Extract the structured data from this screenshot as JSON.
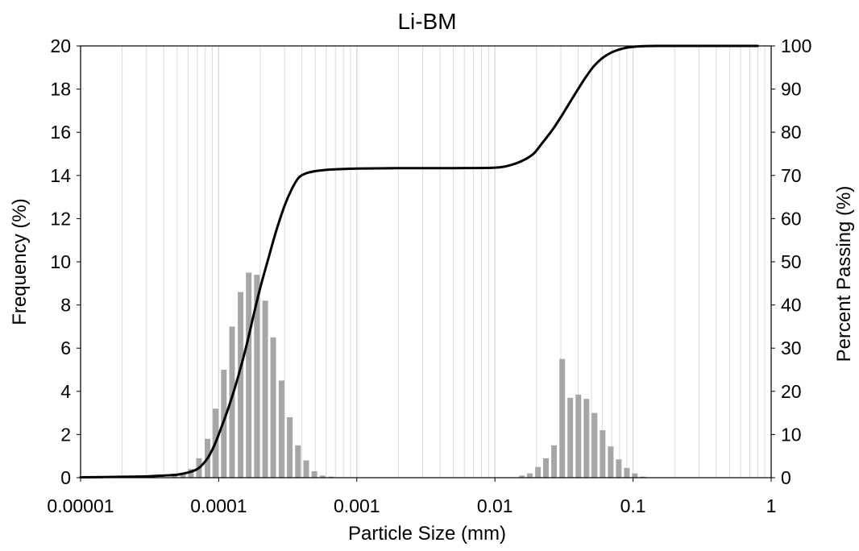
{
  "chart_data": {
    "type": "bar",
    "title": "Li-BM",
    "xlabel": "Particle Size (mm)",
    "ylabel": "Frequency (%)",
    "y2label": "Percent Passing (%)",
    "xscale": "log",
    "xlim": [
      1e-05,
      1
    ],
    "ylim": [
      0,
      20
    ],
    "y2lim": [
      0,
      100
    ],
    "x_ticks": [
      "0.00001",
      "0.0001",
      "0.001",
      "0.01",
      "0.1",
      "1"
    ],
    "y_ticks": [
      "0",
      "2",
      "4",
      "6",
      "8",
      "10",
      "12",
      "14",
      "16",
      "18",
      "20"
    ],
    "y2_ticks": [
      "0",
      "10",
      "20",
      "30",
      "40",
      "50",
      "60",
      "70",
      "80",
      "90",
      "100"
    ],
    "grid": "vertical minor log gridlines",
    "colors": {
      "bars": "#a6a6a6",
      "line": "#000000",
      "grid": "#d9d9d9"
    },
    "series": [
      {
        "type": "bar",
        "axis": "left",
        "x": [
          4.8e-05,
          5.5e-05,
          6.3e-05,
          7.2e-05,
          8.3e-05,
          9.5e-05,
          0.000109,
          0.000125,
          0.000144,
          0.000165,
          0.000189,
          0.000217,
          0.000248,
          0.000285,
          0.000327,
          0.000375,
          0.00043,
          0.000493,
          0.000565,
          0.000648,
          0.000743,
          0.000853,
          0.000978,
          0.0157,
          0.0179,
          0.0205,
          0.0234,
          0.0268,
          0.0307,
          0.0351,
          0.0402,
          0.046,
          0.0526,
          0.0602,
          0.0689,
          0.0788,
          0.0902,
          0.103,
          0.118,
          0.135,
          0.155,
          0.177,
          0.203,
          0.232
        ],
        "values": [
          0.1,
          0.2,
          0.4,
          0.9,
          1.8,
          3.2,
          5.0,
          7.0,
          8.6,
          9.5,
          9.4,
          8.2,
          6.5,
          4.5,
          2.8,
          1.5,
          0.8,
          0.3,
          0.1,
          0.05,
          0.02,
          0.01,
          0.01,
          0.1,
          0.2,
          0.5,
          0.9,
          1.5,
          5.5,
          3.7,
          3.85,
          3.65,
          3.0,
          2.2,
          1.45,
          0.85,
          0.45,
          0.2,
          0.05,
          0.02,
          0.01,
          0.01,
          0.01,
          0.01
        ]
      },
      {
        "type": "line",
        "axis": "right",
        "x": [
          1e-05,
          2e-05,
          3e-05,
          4e-05,
          5e-05,
          6e-05,
          7e-05,
          8e-05,
          9e-05,
          0.0001,
          0.00012,
          0.00014,
          0.00016,
          0.00018,
          0.0002,
          0.00023,
          0.00026,
          0.0003,
          0.00034,
          0.00038,
          0.00043,
          0.0005,
          0.0006,
          0.0008,
          0.001,
          0.002,
          0.005,
          0.01,
          0.013,
          0.016,
          0.019,
          0.022,
          0.026,
          0.03,
          0.035,
          0.04,
          0.046,
          0.052,
          0.06,
          0.07,
          0.08,
          0.09,
          0.1,
          0.12,
          0.15,
          0.2,
          0.3,
          0.5,
          0.8
        ],
        "values": [
          0.1,
          0.2,
          0.3,
          0.5,
          0.7,
          1.2,
          2.0,
          3.8,
          6.5,
          10,
          17,
          24,
          31,
          38,
          44,
          51,
          57,
          63,
          67,
          69.5,
          70.5,
          71,
          71.3,
          71.5,
          71.6,
          71.7,
          71.7,
          71.8,
          72.4,
          73.5,
          75,
          77.5,
          80.5,
          83.5,
          87,
          90,
          93,
          95.3,
          97.2,
          98.5,
          99.2,
          99.6,
          99.8,
          99.95,
          100,
          100,
          100,
          100,
          100
        ]
      }
    ]
  }
}
